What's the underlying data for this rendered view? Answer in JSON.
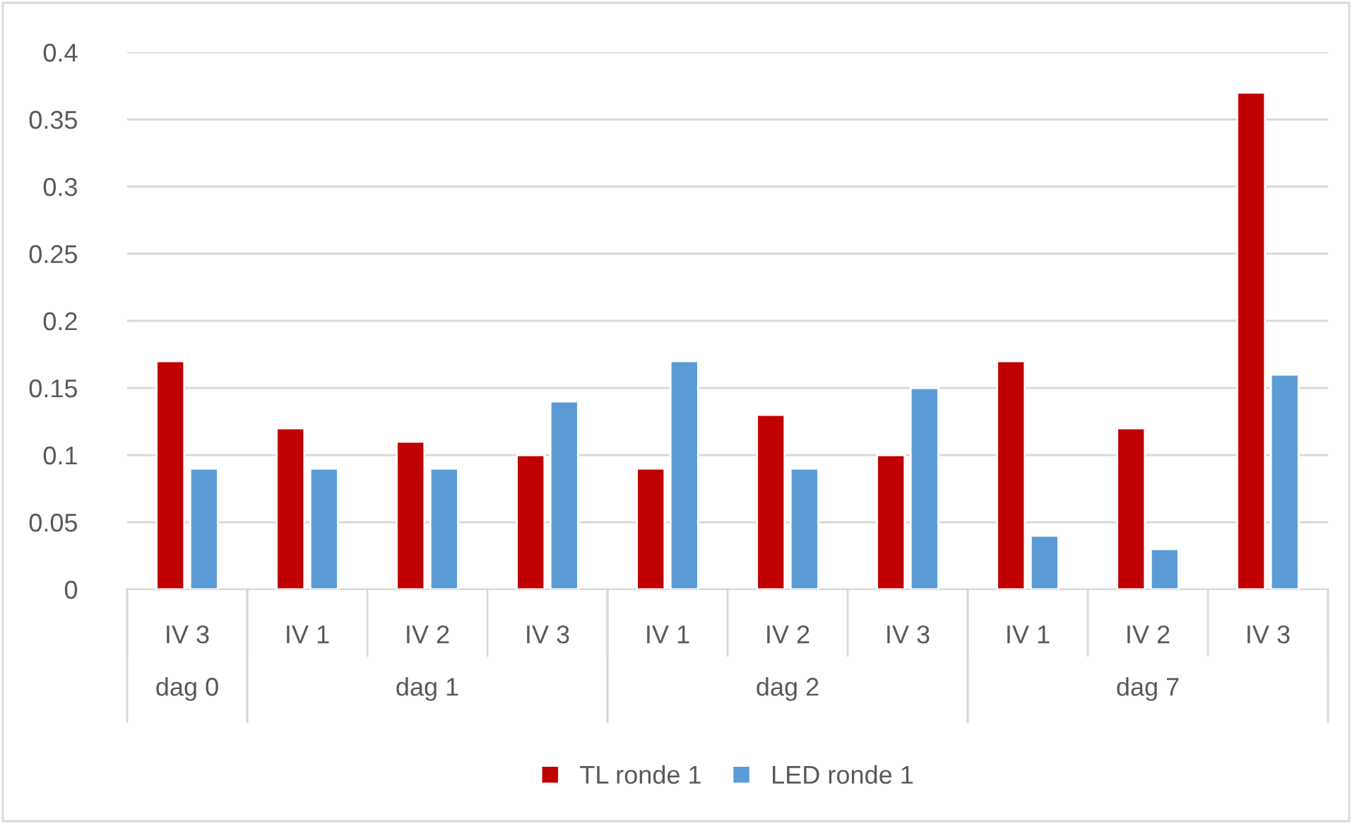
{
  "chart_data": {
    "type": "bar",
    "categories": [
      "IV 3",
      "IV 1",
      "IV 2",
      "IV 3",
      "IV 1",
      "IV 2",
      "IV 3",
      "IV 1",
      "IV 2",
      "IV 3"
    ],
    "series": [
      {
        "name": "TL ronde 1",
        "color": "#c00000",
        "values": [
          0.17,
          0.12,
          0.11,
          0.1,
          0.09,
          0.13,
          0.1,
          0.17,
          0.12,
          0.37
        ]
      },
      {
        "name": "LED ronde 1",
        "color": "#5b9bd5",
        "values": [
          0.09,
          0.09,
          0.09,
          0.14,
          0.17,
          0.09,
          0.15,
          0.04,
          0.03,
          0.16
        ]
      }
    ],
    "annotations": [
      "dag 0",
      "dag 1",
      "dag 2",
      "dag 7"
    ],
    "ylim": [
      0,
      0.4
    ],
    "yticks": [
      0,
      0.05,
      0.1,
      0.15,
      0.2,
      0.25,
      0.3,
      0.35,
      0.4
    ],
    "grid": "y",
    "legend": "bottom"
  }
}
